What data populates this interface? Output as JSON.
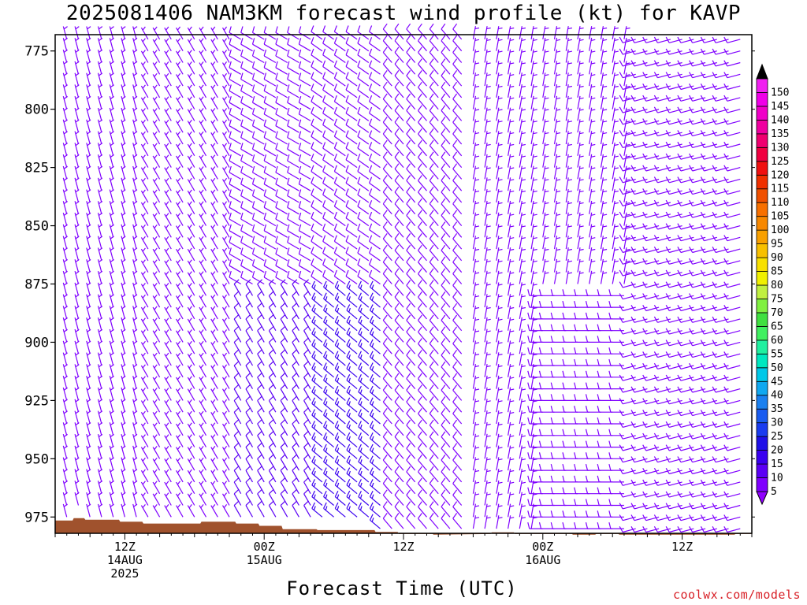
{
  "header": {
    "title": "2025081406 NAM3KM forecast wind profile (kt) for KAVP"
  },
  "footer": {
    "credit": "coolwx.com/models"
  },
  "chart_data": {
    "type": "wind-barb profile",
    "title": "2025081406 NAM3KM forecast wind profile (kt) for KAVP",
    "xlabel": "Forecast Time (UTC)",
    "ylabel": "",
    "y_scale": "linear",
    "y_inverted": true,
    "ylim": [
      982,
      768
    ],
    "y_ticks": [
      775,
      800,
      825,
      850,
      875,
      900,
      925,
      950,
      975
    ],
    "xlim_hours": [
      4,
      64
    ],
    "x_ticks": [
      {
        "hour": 10,
        "lines": [
          "12Z",
          "14AUG",
          "2025"
        ]
      },
      {
        "hour": 22,
        "lines": [
          "00Z",
          "15AUG"
        ]
      },
      {
        "hour": 34,
        "lines": [
          "12Z"
        ]
      },
      {
        "hour": 46,
        "lines": [
          "00Z",
          "16AUG"
        ]
      },
      {
        "hour": 58,
        "lines": [
          "12Z"
        ]
      }
    ],
    "grid": false,
    "colorbar": {
      "label_unit": "kt",
      "levels": [
        5,
        10,
        15,
        20,
        25,
        30,
        35,
        40,
        45,
        50,
        55,
        60,
        65,
        70,
        75,
        80,
        85,
        90,
        95,
        100,
        105,
        110,
        115,
        120,
        125,
        130,
        135,
        140,
        145,
        150
      ],
      "colors": [
        "#7f00ff",
        "#5b00f5",
        "#3a00f0",
        "#1f10e8",
        "#1a3cf0",
        "#1a5cf0",
        "#1a80f0",
        "#10a8f0",
        "#00c8e8",
        "#00e8c0",
        "#20f0a0",
        "#40f060",
        "#40e040",
        "#80f040",
        "#c0f040",
        "#f0f000",
        "#f8e000",
        "#f8c000",
        "#f8a000",
        "#f88800",
        "#f87000",
        "#f05000",
        "#f03000",
        "#f01010",
        "#f00040",
        "#f00070",
        "#f000a0",
        "#f000c8",
        "#f000e8",
        "#f020f0"
      ],
      "extend_top": "#000000",
      "extend_bottom": "#9000ff"
    },
    "terrain": {
      "color": "#a0522d",
      "surface_pressure": [
        {
          "hour": 4.0,
          "p": 976.5
        },
        {
          "hour": 5.5,
          "p": 976.5
        },
        {
          "hour": 5.6,
          "p": 975.5
        },
        {
          "hour": 6.5,
          "p": 975.5
        },
        {
          "hour": 6.6,
          "p": 976.2
        },
        {
          "hour": 9.5,
          "p": 976.2
        },
        {
          "hour": 9.6,
          "p": 977.0
        },
        {
          "hour": 11.5,
          "p": 977.0
        },
        {
          "hour": 11.6,
          "p": 977.8
        },
        {
          "hour": 16.5,
          "p": 977.8
        },
        {
          "hour": 16.6,
          "p": 977.0
        },
        {
          "hour": 19.5,
          "p": 977.0
        },
        {
          "hour": 19.6,
          "p": 977.8
        },
        {
          "hour": 21.5,
          "p": 977.8
        },
        {
          "hour": 21.6,
          "p": 978.8
        },
        {
          "hour": 23.5,
          "p": 978.8
        },
        {
          "hour": 23.6,
          "p": 980.2
        },
        {
          "hour": 26.5,
          "p": 980.2
        },
        {
          "hour": 26.6,
          "p": 980.6
        },
        {
          "hour": 31.5,
          "p": 980.6
        },
        {
          "hour": 31.6,
          "p": 981.4
        },
        {
          "hour": 33.5,
          "p": 981.4
        },
        {
          "hour": 33.6,
          "p": 982.3
        },
        {
          "hour": 36.5,
          "p": 982.3
        },
        {
          "hour": 36.6,
          "p": 982.6
        },
        {
          "hour": 41.5,
          "p": 982.3
        },
        {
          "hour": 41.6,
          "p": 981.6
        },
        {
          "hour": 43.5,
          "p": 981.6
        },
        {
          "hour": 43.6,
          "p": 982.3
        },
        {
          "hour": 48.5,
          "p": 982.3
        },
        {
          "hour": 48.6,
          "p": 982.6
        },
        {
          "hour": 50.5,
          "p": 982.6
        },
        {
          "hour": 50.6,
          "p": 982.3
        },
        {
          "hour": 52.5,
          "p": 982.3
        },
        {
          "hour": 52.6,
          "p": 982.6
        },
        {
          "hour": 62.5,
          "p": 982.6
        },
        {
          "hour": 62.6,
          "p": 982.3
        },
        {
          "hour": 64.0,
          "p": 982.3
        }
      ]
    },
    "barb_grid": {
      "hours_start": 4,
      "hours_end": 64,
      "hours_step": 1,
      "p_top": 770,
      "p_bottom": 985,
      "p_step": 5
    },
    "wind_regimes": [
      {
        "hours": [
          4,
          12
        ],
        "p": [
          770,
          985
        ],
        "dir_deg": 345,
        "speed_kt": 5
      },
      {
        "hours": [
          12,
          20
        ],
        "p": [
          770,
          985
        ],
        "dir_deg": 330,
        "speed_kt": 6
      },
      {
        "hours": [
          20,
          27
        ],
        "p": [
          770,
          880
        ],
        "dir_deg": 300,
        "speed_kt": 8
      },
      {
        "hours": [
          20,
          27
        ],
        "p": [
          880,
          985
        ],
        "dir_deg": 330,
        "speed_kt": 12
      },
      {
        "hours": [
          27,
          33
        ],
        "p": [
          770,
          880
        ],
        "dir_deg": 305,
        "speed_kt": 8
      },
      {
        "hours": [
          27,
          33
        ],
        "p": [
          880,
          985
        ],
        "dir_deg": 310,
        "speed_kt": 16
      },
      {
        "hours": [
          33,
          40
        ],
        "p": [
          770,
          985
        ],
        "dir_deg": 320,
        "speed_kt": 8
      },
      {
        "hours": [
          40,
          46
        ],
        "p": [
          770,
          985
        ],
        "dir_deg": 10,
        "speed_kt": 6
      },
      {
        "hours": [
          46,
          54
        ],
        "p": [
          770,
          880
        ],
        "dir_deg": 10,
        "speed_kt": 7
      },
      {
        "hours": [
          46,
          54
        ],
        "p": [
          880,
          985
        ],
        "dir_deg": 270,
        "speed_kt": 9
      },
      {
        "hours": [
          54,
          64
        ],
        "p": [
          770,
          985
        ],
        "dir_deg": 255,
        "speed_kt": 8
      }
    ]
  }
}
